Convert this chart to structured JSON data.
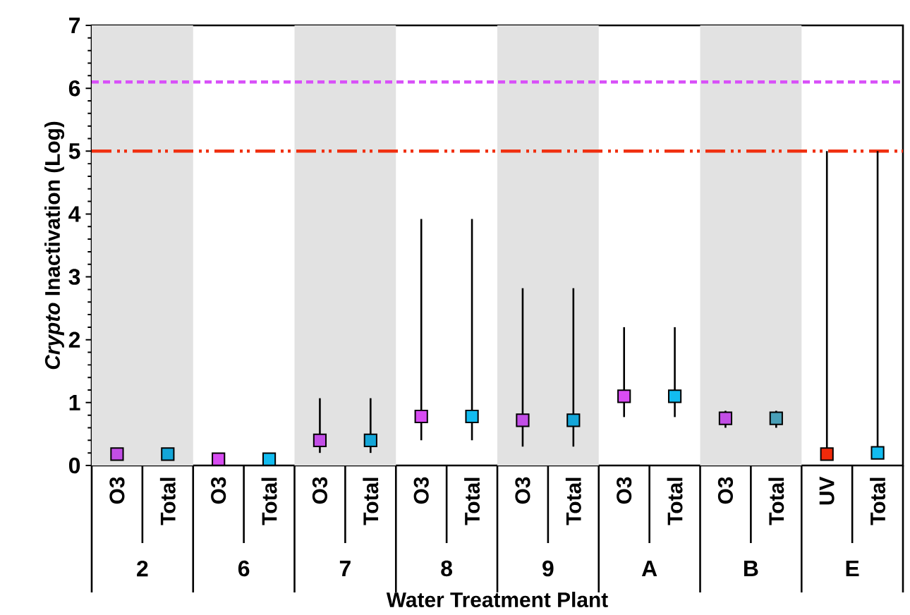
{
  "chart_data": {
    "type": "scatter",
    "xlabel": "Water Treatment Plant",
    "ylabel": "*Crypto* Inactivation (Log)",
    "categories": [
      "O3",
      "Total",
      "O3",
      "Total",
      "O3",
      "Total",
      "O3",
      "Total",
      "O3",
      "Total",
      "O3",
      "Total",
      "O3",
      "Total",
      "UV",
      "Total"
    ],
    "values": [
      0.18,
      0.18,
      0.1,
      0.1,
      0.4,
      0.4,
      0.78,
      0.78,
      0.72,
      0.72,
      1.1,
      1.1,
      0.75,
      0.75,
      0.18,
      0.2
    ],
    "colors": [
      "#c24ee6",
      "#14a6d8",
      "#d84cf2",
      "#12bcf0",
      "#c24ee6",
      "#14a6d8",
      "#d84cf2",
      "#12bcf0",
      "#c24ee6",
      "#14a6d8",
      "#d84cf2",
      "#12bcf0",
      "#c24ee6",
      "#4aa0b8",
      "#f02a0a",
      "#12bcf0"
    ],
    "errors": [
      null,
      null,
      null,
      null,
      [
        0.2,
        1.07
      ],
      [
        0.2,
        1.07
      ],
      [
        0.4,
        3.92
      ],
      [
        0.4,
        3.92
      ],
      [
        0.3,
        2.82
      ],
      [
        0.3,
        2.82
      ],
      [
        0.77,
        2.2
      ],
      [
        0.77,
        2.2
      ],
      [
        0.6,
        0.87
      ],
      [
        0.6,
        0.87
      ],
      [
        0.18,
        5
      ],
      [
        0.2,
        5
      ]
    ],
    "annotations": [
      "2",
      "6",
      "7",
      "8",
      "9",
      "A",
      "B",
      "E"
    ],
    "ylim": [
      0,
      7
    ],
    "yticks": [
      0,
      1,
      2,
      3,
      4,
      5,
      6,
      7
    ],
    "grid": false,
    "marker": "square",
    "ref_lines": [
      {
        "axis": "y",
        "value": 6.1,
        "color": "#d850f8",
        "line_style": "dashed"
      },
      {
        "axis": "y",
        "value": 5,
        "color": "#f03010",
        "line_style": "dashdotdotted"
      }
    ]
  }
}
